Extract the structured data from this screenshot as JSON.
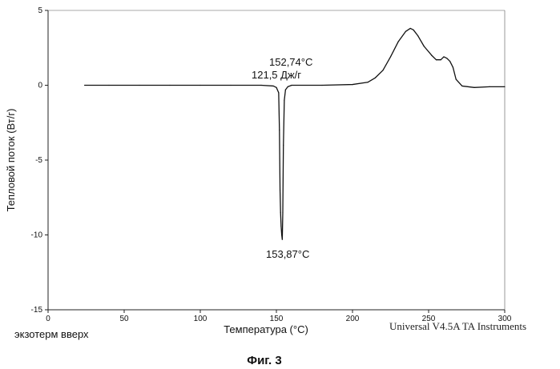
{
  "chart_data": {
    "type": "line",
    "title": "",
    "xlabel": "Температура (°C)",
    "ylabel": "Тепловой поток (Вт/г)",
    "xlim": [
      0,
      300
    ],
    "ylim": [
      -15,
      5
    ],
    "x_ticks": [
      0,
      50,
      100,
      150,
      200,
      250,
      300
    ],
    "y_ticks": [
      5,
      0,
      -5,
      -10,
      -15
    ],
    "grid": false,
    "series": [
      {
        "x": [
          24,
          40,
          60,
          80,
          100,
          120,
          140,
          148,
          150,
          151.5,
          152.0,
          152.4,
          152.74,
          153.1,
          153.5,
          153.87,
          154.2,
          154.6,
          155.2,
          156.0,
          157.5,
          160,
          180,
          200,
          210,
          215,
          220,
          225,
          230,
          235,
          238,
          240,
          243,
          247,
          252,
          255,
          258,
          260,
          262,
          264,
          266,
          268,
          272,
          280,
          290,
          300
        ],
        "y": [
          0.0,
          0.0,
          0.0,
          0.0,
          0.0,
          0.0,
          0.0,
          -0.05,
          -0.15,
          -0.5,
          -3.0,
          -7.0,
          -8.5,
          -9.4,
          -10.0,
          -10.3,
          -8.5,
          -4.0,
          -1.0,
          -0.3,
          -0.1,
          0.0,
          0.0,
          0.05,
          0.2,
          0.5,
          1.0,
          1.9,
          2.9,
          3.6,
          3.8,
          3.7,
          3.3,
          2.6,
          2.0,
          1.7,
          1.7,
          1.9,
          1.8,
          1.6,
          1.2,
          0.4,
          -0.05,
          -0.15,
          -0.1,
          -0.1
        ]
      }
    ],
    "annotations": {
      "peak_top_temp": "152,74°C",
      "enthalpy": "121,5 Дж/г",
      "peak_bottom_temp": "153,87°C"
    }
  },
  "footer": {
    "exotherm": "экзотерм вверх",
    "instrument": "Universal V4.5A TA Instruments",
    "figure_caption": "Фиг. 3"
  }
}
